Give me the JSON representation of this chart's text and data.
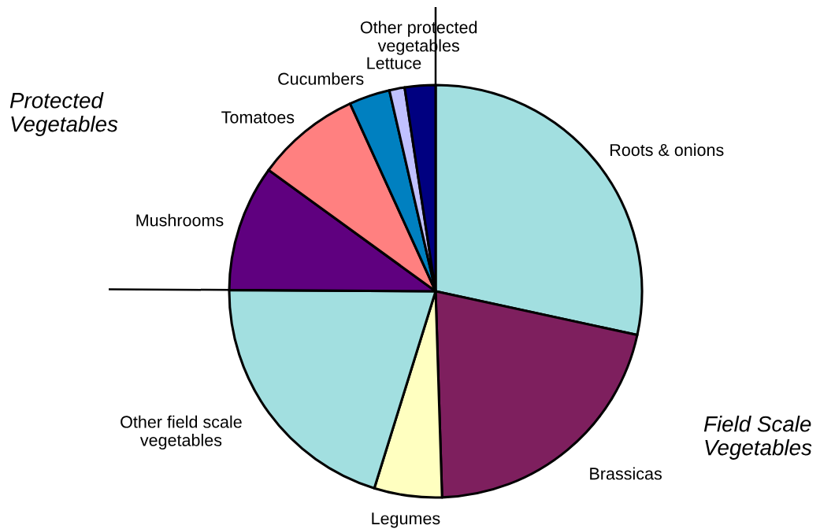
{
  "chart_data": {
    "type": "pie",
    "categories": [
      "Roots & onions",
      "Brassicas",
      "Legumes",
      "Other field scale\nvegetables",
      "Mushrooms",
      "Tomatoes",
      "Cucumbers",
      "Lettuce",
      "Other protected\nvegetables"
    ],
    "values": [
      28.4,
      21.1,
      5.3,
      20.3,
      9.9,
      8.2,
      3.2,
      1.2,
      2.4
    ],
    "colors": [
      "#a2dfe0",
      "#7e1f5e",
      "#ffffc0",
      "#a2dfe0",
      "#5f007f",
      "#ff8080",
      "#0080c0",
      "#c0c0ff",
      "#000080"
    ],
    "annotations": [
      "Protected\nVegetables",
      "Field Scale\nVegetables"
    ]
  }
}
